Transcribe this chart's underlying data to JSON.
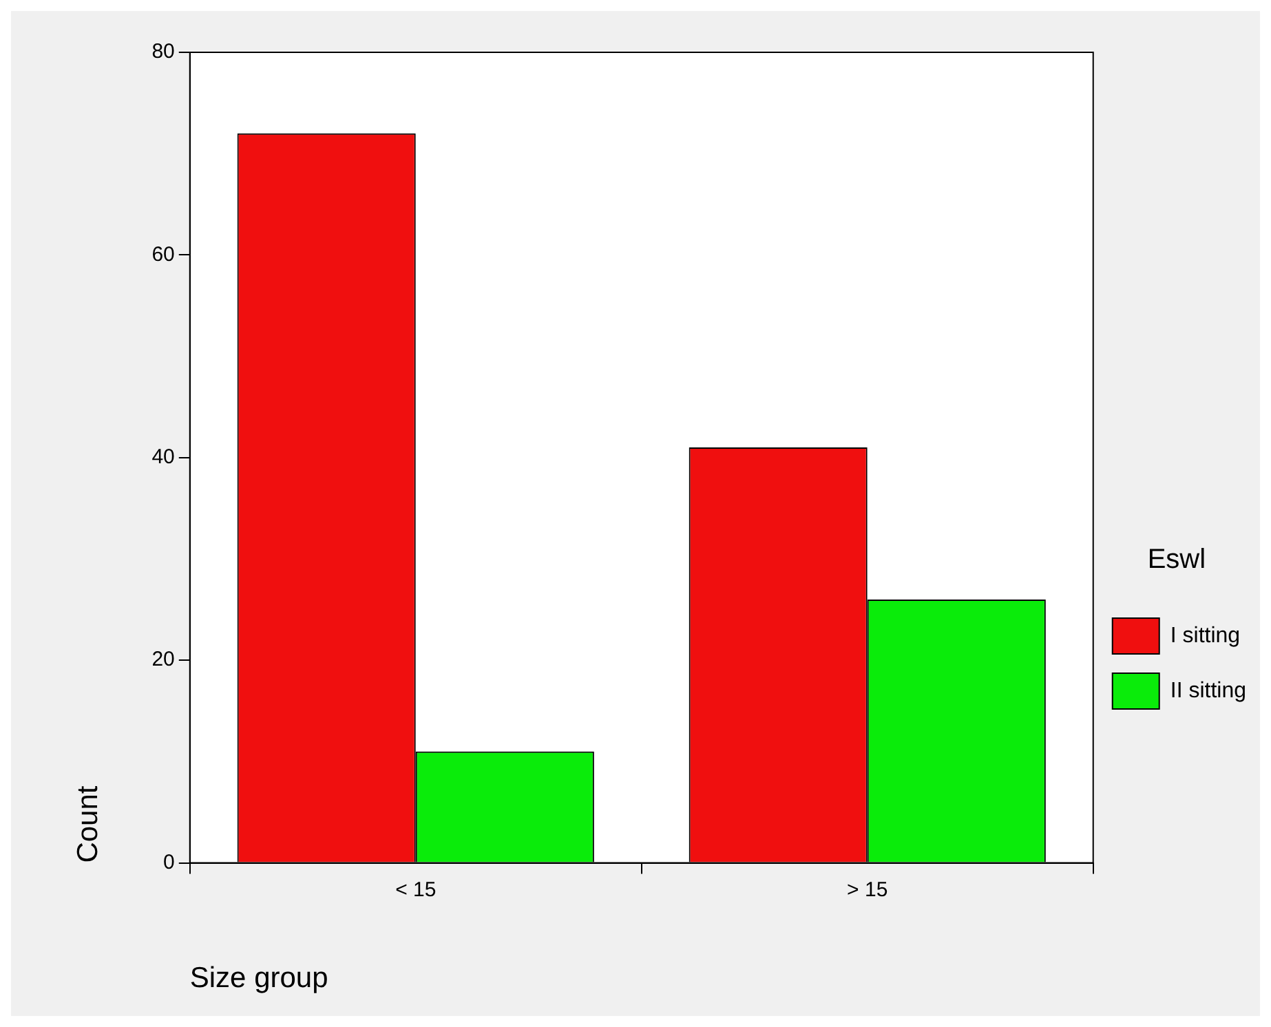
{
  "chart_data": {
    "type": "bar",
    "xlabel": "Size group",
    "ylabel": "Count",
    "legend_title": "Eswl",
    "categories": [
      "< 15",
      "> 15"
    ],
    "series": [
      {
        "name": "I sitting",
        "color": "#f00f0f",
        "values": [
          72,
          41
        ]
      },
      {
        "name": "II sitting",
        "color": "#0aec0a",
        "values": [
          11,
          26
        ]
      }
    ],
    "ylim": [
      0,
      80
    ],
    "yticks": [
      0,
      20,
      40,
      60,
      80
    ],
    "grid": false,
    "legend": "right"
  }
}
